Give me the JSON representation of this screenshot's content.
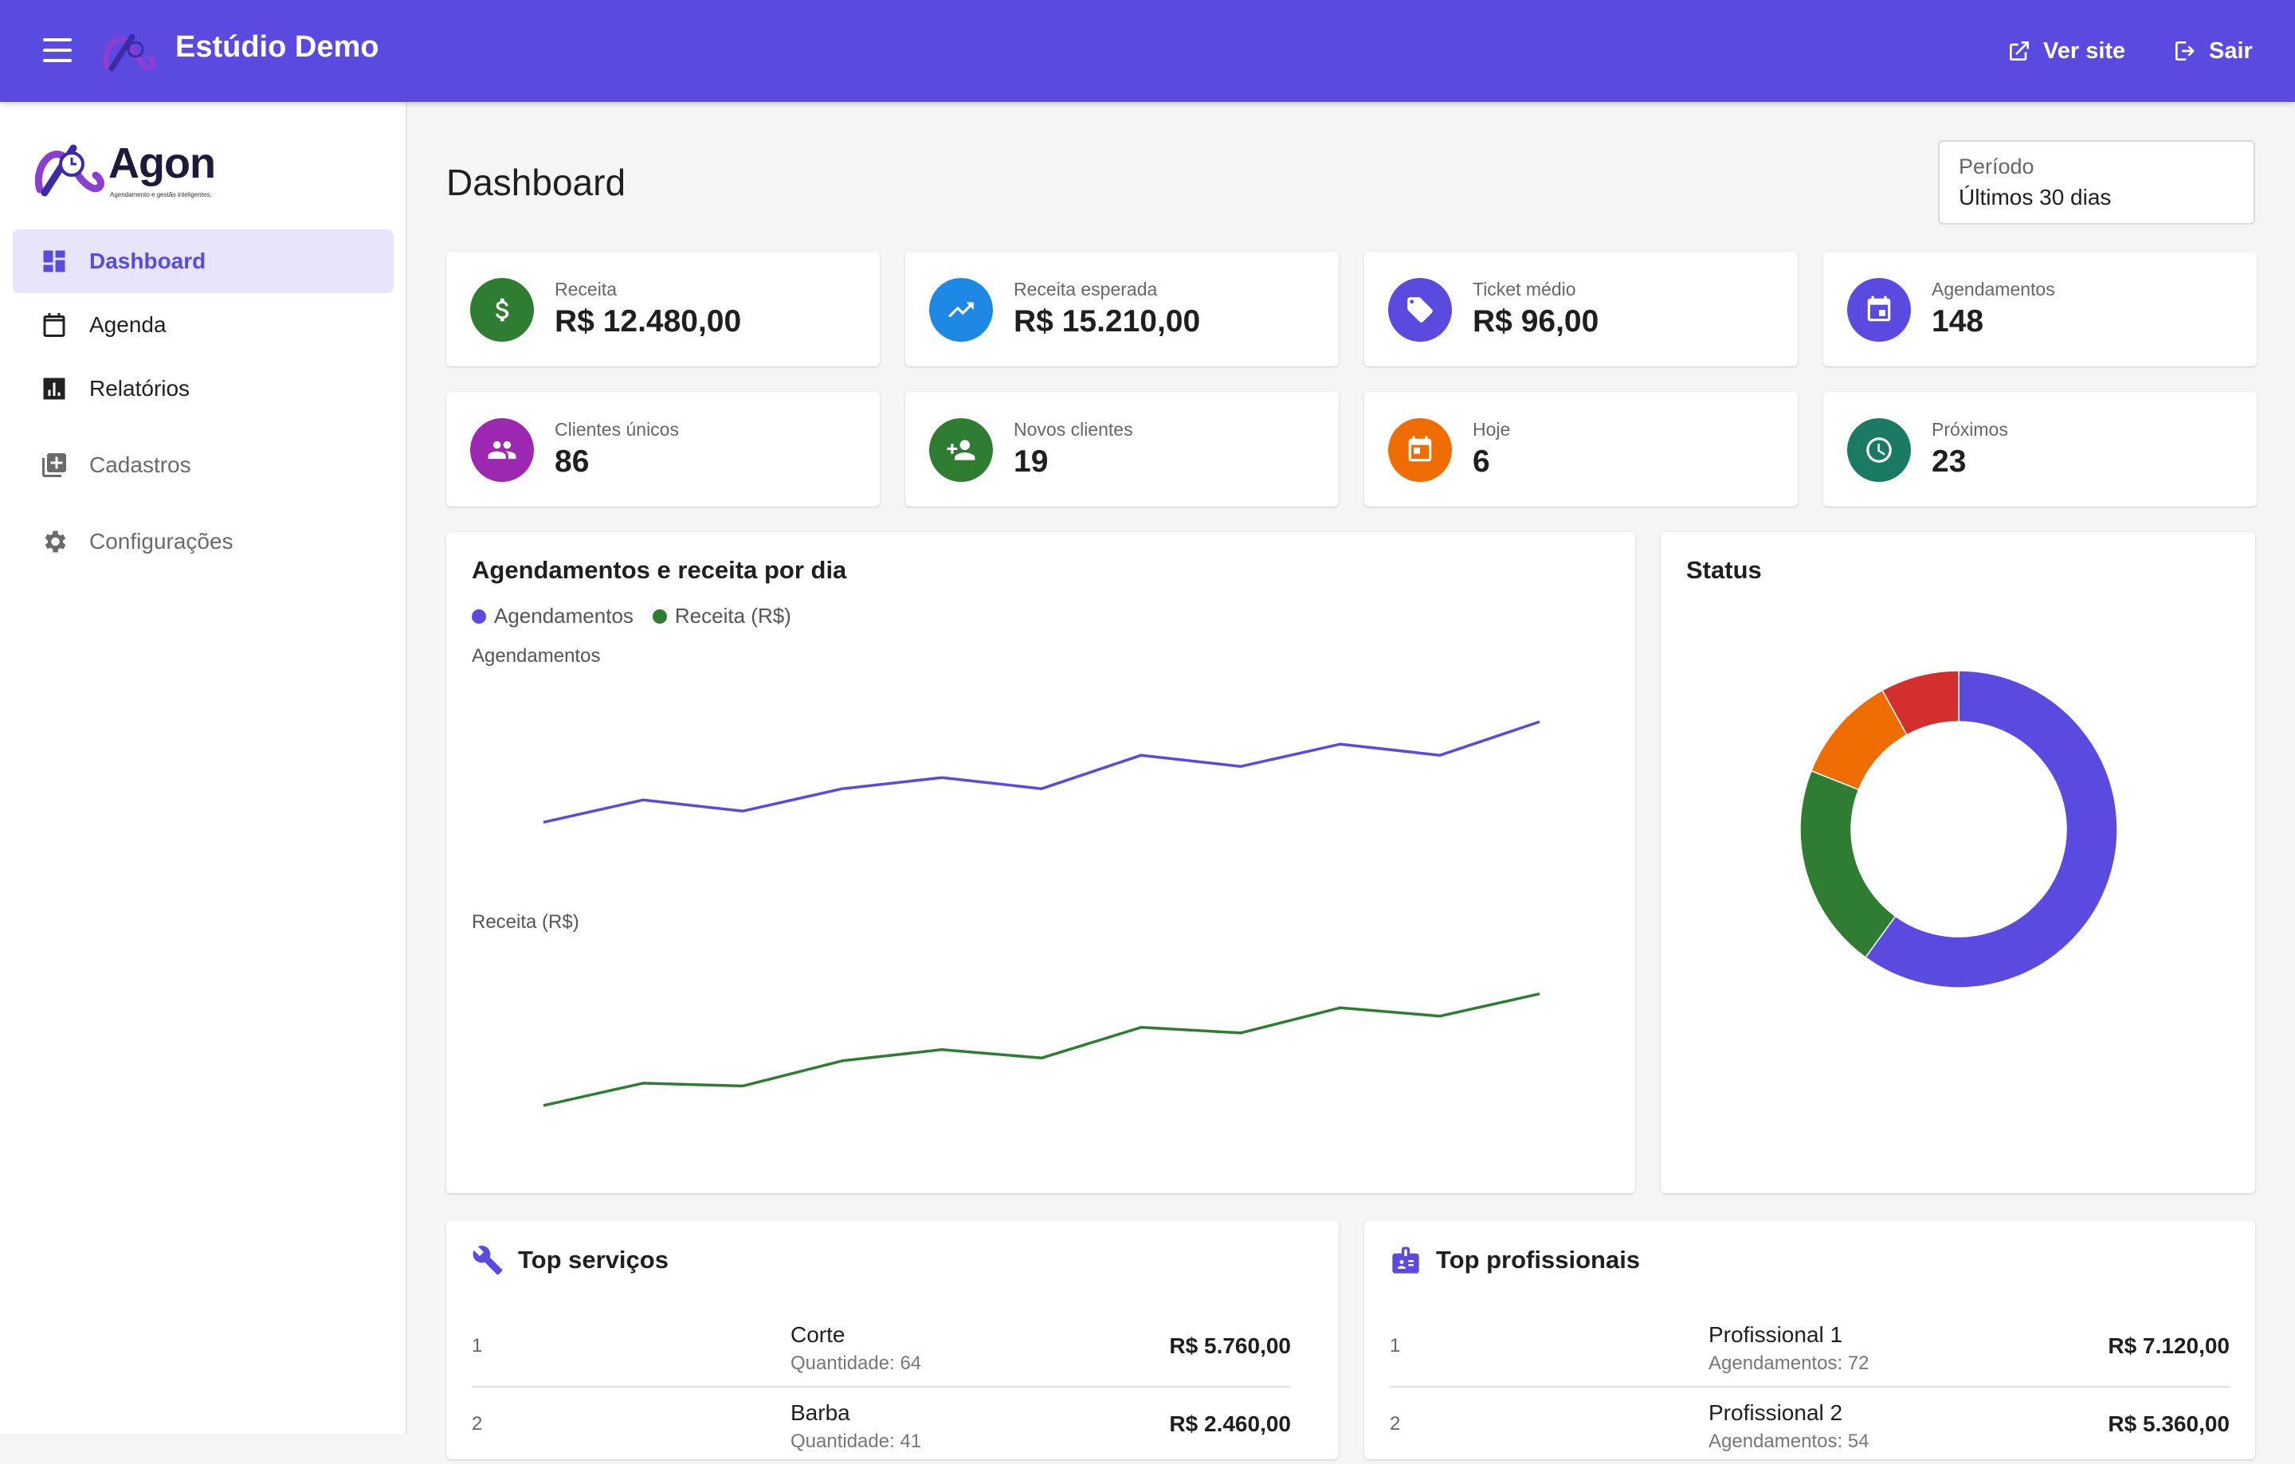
{
  "topbar": {
    "title": "Estúdio Demo",
    "view_site_label": "Ver site",
    "logout_label": "Sair",
    "color": "#5b4ae0"
  },
  "sidebar": {
    "brand_name": "Agon",
    "brand_tagline": "Agendamento e gestão inteligentes.",
    "items": [
      {
        "label": "Dashboard",
        "icon": "dashboard-icon",
        "active": true
      },
      {
        "label": "Agenda",
        "icon": "calendar-icon"
      },
      {
        "label": "Relatórios",
        "icon": "bar-chart-icon"
      },
      {
        "label": "Cadastros",
        "icon": "library-add-icon"
      },
      {
        "label": "Configurações",
        "icon": "gear-icon"
      }
    ]
  },
  "main": {
    "title": "Dashboard",
    "period": {
      "label": "Período",
      "value": "Últimos 30 dias"
    }
  },
  "stats": [
    {
      "label": "Receita",
      "value": "R$ 12.480,00",
      "icon": "dollar-icon",
      "color": "#2e7d32"
    },
    {
      "label": "Receita esperada",
      "value": "R$ 15.210,00",
      "icon": "trending-up-icon",
      "color": "#1e88e5"
    },
    {
      "label": "Ticket médio",
      "value": "R$ 96,00",
      "icon": "tag-icon",
      "color": "#5b4ae0"
    },
    {
      "label": "Agendamentos",
      "value": "148",
      "icon": "event-icon",
      "color": "#5b4ae0"
    },
    {
      "label": "Clientes únicos",
      "value": "86",
      "icon": "people-icon",
      "color": "#9c27b0"
    },
    {
      "label": "Novos clientes",
      "value": "19",
      "icon": "person-add-icon",
      "color": "#2e7d32"
    },
    {
      "label": "Hoje",
      "value": "6",
      "icon": "today-icon",
      "color": "#ef6c00"
    },
    {
      "label": "Próximos",
      "value": "23",
      "icon": "clock-icon",
      "color": "#1b7a63"
    }
  ],
  "chart_data": [
    {
      "type": "line",
      "title": "Agendamentos e receita por dia",
      "legend": [
        "Agendamentos",
        "Receita (R$)"
      ],
      "legend_placement": "top-left",
      "series": [
        {
          "name": "Agendamentos",
          "color": "#5b4ae0",
          "values": [
            9,
            11,
            10,
            12,
            13,
            12,
            15,
            14,
            16,
            15,
            18
          ]
        },
        {
          "name": "Receita (R$)",
          "color": "#2e7d32",
          "values": [
            300,
            380,
            370,
            460,
            500,
            470,
            580,
            560,
            650,
            620,
            700
          ]
        }
      ],
      "grid": false
    },
    {
      "type": "pie",
      "title": "Status",
      "donut": true,
      "slices": [
        {
          "value": 60,
          "color": "#5b4ae0"
        },
        {
          "value": 21,
          "color": "#2e7d32"
        },
        {
          "value": 11,
          "color": "#ef6c00"
        },
        {
          "value": 8,
          "color": "#d32f2f"
        }
      ]
    }
  ],
  "top_services": {
    "title": "Top serviços",
    "rows": [
      {
        "rank": "1",
        "name": "Corte",
        "sub": "Quantidade: 64",
        "amount": "R$ 5.760,00"
      },
      {
        "rank": "2",
        "name": "Barba",
        "sub": "Quantidade: 41",
        "amount": "R$ 2.460,00"
      }
    ]
  },
  "top_professionals": {
    "title": "Top profissionais",
    "rows": [
      {
        "rank": "1",
        "name": "Profissional 1",
        "sub": "Agendamentos: 72",
        "amount": "R$ 7.120,00"
      },
      {
        "rank": "2",
        "name": "Profissional 2",
        "sub": "Agendamentos: 54",
        "amount": "R$ 5.360,00"
      }
    ]
  }
}
